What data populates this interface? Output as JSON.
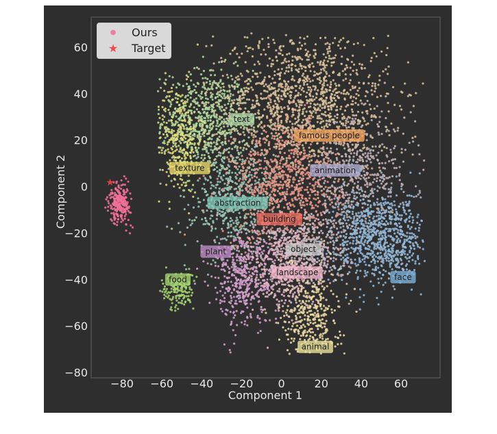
{
  "chart_data": {
    "type": "scatter",
    "title": "",
    "xlabel": "Component 1",
    "ylabel": "Component 2",
    "xlim": [
      -96,
      79
    ],
    "ylim": [
      -82,
      73
    ],
    "xticks": [
      -80,
      -60,
      -40,
      -20,
      0,
      20,
      40,
      60
    ],
    "yticks": [
      -80,
      -60,
      -40,
      -20,
      0,
      20,
      40,
      60
    ],
    "xtick_labels": [
      "−80",
      "−60",
      "−40",
      "−20",
      "0",
      "20",
      "40",
      "60"
    ],
    "ytick_labels": [
      "−80",
      "−60",
      "−40",
      "−20",
      "0",
      "20",
      "40",
      "60"
    ],
    "grid": false,
    "legend": {
      "position": "upper left",
      "entries": [
        {
          "label": "Ours",
          "marker": "dot",
          "color": "#f07ca0"
        },
        {
          "label": "Target",
          "marker": "star",
          "color": "#f04848"
        }
      ]
    },
    "target_point": {
      "x": -86,
      "y": 2
    },
    "ours_cluster": {
      "center": [
        -81,
        -7
      ],
      "spread": [
        2.6,
        4.2
      ],
      "count": 260,
      "color": "#f2709a"
    },
    "clusters": [
      {
        "name": "text",
        "label_x": -20,
        "label_y": 29,
        "center": [
          -38,
          28
        ],
        "spread": [
          11,
          11
        ],
        "count": 700,
        "color": "#b4dca0",
        "label_bg": "#b0d6a8"
      },
      {
        "name": "texture",
        "label_x": -46,
        "label_y": 8,
        "center": [
          -52,
          20
        ],
        "spread": [
          6,
          12
        ],
        "count": 300,
        "color": "#e2df80",
        "label_bg": "#e8d868"
      },
      {
        "name": "famous people",
        "label_x": 24,
        "label_y": 22,
        "center": [
          10,
          35
        ],
        "spread": [
          22,
          16
        ],
        "count": 1500,
        "color": "#dcc49e",
        "label_bg": "#f4a860"
      },
      {
        "name": "animation",
        "label_x": 27,
        "label_y": 7,
        "center": [
          38,
          5
        ],
        "spread": [
          14,
          12
        ],
        "count": 500,
        "color": "#c4b4ba",
        "label_bg": "#b0acd0"
      },
      {
        "name": "abstraction",
        "label_x": -22,
        "label_y": -7,
        "center": [
          -24,
          -6
        ],
        "spread": [
          10,
          12
        ],
        "count": 550,
        "color": "#9cc8b8",
        "label_bg": "#7ec8b8"
      },
      {
        "name": "building",
        "label_x": -1,
        "label_y": -14,
        "center": [
          2,
          0
        ],
        "spread": [
          14,
          14
        ],
        "count": 900,
        "color": "#e89888",
        "label_bg": "#e86a5e"
      },
      {
        "name": "object",
        "label_x": 11,
        "label_y": -27,
        "center": [
          14,
          -26
        ],
        "spread": [
          10,
          9
        ],
        "count": 400,
        "color": "#ccbcc4",
        "label_bg": "#cccccc"
      },
      {
        "name": "landscape",
        "label_x": 8,
        "label_y": -37,
        "center": [
          0,
          -34
        ],
        "spread": [
          10,
          10
        ],
        "count": 500,
        "color": "#e8b8c8",
        "label_bg": "#f0b8cc"
      },
      {
        "name": "plant",
        "label_x": -33,
        "label_y": -28,
        "center": [
          -20,
          -40
        ],
        "spread": [
          8,
          10
        ],
        "count": 400,
        "color": "#d4a0cc",
        "label_bg": "#c08cc8"
      },
      {
        "name": "food",
        "label_x": -52,
        "label_y": -40,
        "center": [
          -52,
          -45
        ],
        "spread": [
          4,
          4
        ],
        "count": 150,
        "color": "#a4d470",
        "label_bg": "#a4d470"
      },
      {
        "name": "face",
        "label_x": 61,
        "label_y": -39,
        "center": [
          50,
          -22
        ],
        "spread": [
          12,
          10
        ],
        "count": 900,
        "color": "#94b8d8",
        "label_bg": "#7eb0d8"
      },
      {
        "name": "animal",
        "label_x": 17,
        "label_y": -69,
        "center": [
          15,
          -55
        ],
        "spread": [
          7,
          10
        ],
        "count": 350,
        "color": "#ecdca4",
        "label_bg": "#ece49c"
      }
    ]
  },
  "colors": {
    "figure_bg": "#2e2e2e",
    "axes_spine": "#5a5a5a",
    "text": "#e8e8e8",
    "legend_bg": "#d9d9d9"
  }
}
